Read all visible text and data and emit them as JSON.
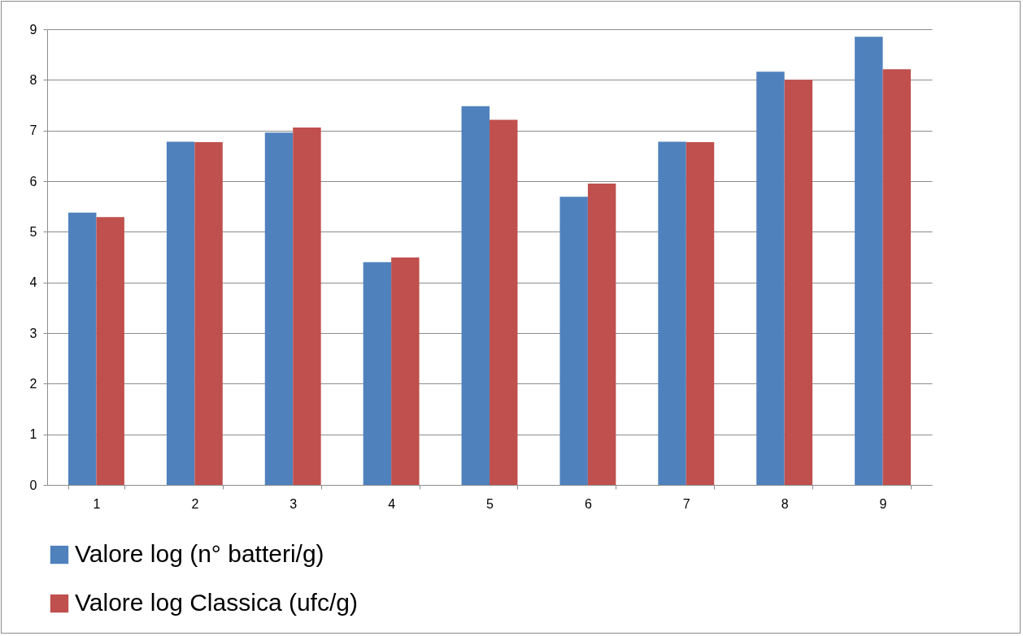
{
  "chart_data": {
    "type": "bar",
    "categories": [
      "1",
      "2",
      "3",
      "4",
      "5",
      "6",
      "7",
      "8",
      "9"
    ],
    "series": [
      {
        "name": "Valore log (n° batteri/g)",
        "color": "#4f81bd",
        "values": [
          5.38,
          6.78,
          6.96,
          4.4,
          7.48,
          5.69,
          6.78,
          8.16,
          8.85
        ]
      },
      {
        "name": "Valore log Classica (ufc/g)",
        "color": "#c0504d",
        "values": [
          5.29,
          6.77,
          7.06,
          4.49,
          7.21,
          5.95,
          6.77,
          8.0,
          8.21
        ]
      }
    ],
    "ylim": [
      0,
      9
    ],
    "yticks": [
      0,
      1,
      2,
      3,
      4,
      5,
      6,
      7,
      8,
      9
    ],
    "grid": "y",
    "legend": "bottom"
  }
}
